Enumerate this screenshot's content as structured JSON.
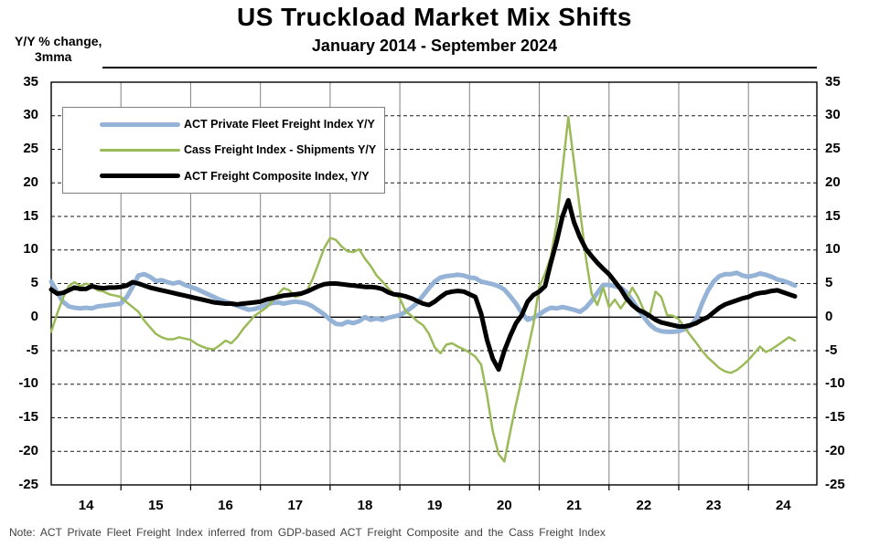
{
  "page": {
    "title": "US Truckload Market Mix Shifts",
    "subtitle": "January 2014 - September 2024",
    "y_axis_unit_line1": "Y/Y % change,",
    "y_axis_unit_line2": "3mma",
    "note": "Note: ACT Private Fleet Freight Index inferred from GDP-based ACT Freight Composite and the Cass Freight Index"
  },
  "chart_data": {
    "type": "line",
    "title": "US Truckload Market Mix Shifts",
    "subtitle": "January 2014 - September 2024",
    "ylabel": "Y/Y % change, 3mma",
    "ylim": [
      -25,
      35
    ],
    "y_tick_step": 5,
    "y_ticks": [
      35,
      30,
      25,
      20,
      15,
      10,
      5,
      0,
      -5,
      -10,
      -15,
      -20,
      -25
    ],
    "x_tick_labels": [
      "14",
      "15",
      "16",
      "17",
      "18",
      "19",
      "20",
      "21",
      "22",
      "23",
      "24"
    ],
    "x_start": "2014-01",
    "x_end": "2024-09",
    "frequency": "monthly",
    "grid": {
      "vertical": "solid gray at January of each year",
      "horizontal": "dashed every 5, solid line at 0"
    },
    "legend_position": "top-left inside plot",
    "colors": {
      "background": "#FFFFFF",
      "vertical_grid": "#808080",
      "horizontal_grid": "#1A1A1A",
      "zero_line": "#000000",
      "border": "#000000"
    },
    "months": [
      "2014-01",
      "2014-02",
      "2014-03",
      "2014-04",
      "2014-05",
      "2014-06",
      "2014-07",
      "2014-08",
      "2014-09",
      "2014-10",
      "2014-11",
      "2014-12",
      "2015-01",
      "2015-02",
      "2015-03",
      "2015-04",
      "2015-05",
      "2015-06",
      "2015-07",
      "2015-08",
      "2015-09",
      "2015-10",
      "2015-11",
      "2015-12",
      "2016-01",
      "2016-02",
      "2016-03",
      "2016-04",
      "2016-05",
      "2016-06",
      "2016-07",
      "2016-08",
      "2016-09",
      "2016-10",
      "2016-11",
      "2016-12",
      "2017-01",
      "2017-02",
      "2017-03",
      "2017-04",
      "2017-05",
      "2017-06",
      "2017-07",
      "2017-08",
      "2017-09",
      "2017-10",
      "2017-11",
      "2017-12",
      "2018-01",
      "2018-02",
      "2018-03",
      "2018-04",
      "2018-05",
      "2018-06",
      "2018-07",
      "2018-08",
      "2018-09",
      "2018-10",
      "2018-11",
      "2018-12",
      "2019-01",
      "2019-02",
      "2019-03",
      "2019-04",
      "2019-05",
      "2019-06",
      "2019-07",
      "2019-08",
      "2019-09",
      "2019-10",
      "2019-11",
      "2019-12",
      "2020-01",
      "2020-02",
      "2020-03",
      "2020-04",
      "2020-05",
      "2020-06",
      "2020-07",
      "2020-08",
      "2020-09",
      "2020-10",
      "2020-11",
      "2020-12",
      "2021-01",
      "2021-02",
      "2021-03",
      "2021-04",
      "2021-05",
      "2021-06",
      "2021-07",
      "2021-08",
      "2021-09",
      "2021-10",
      "2021-11",
      "2021-12",
      "2022-01",
      "2022-02",
      "2022-03",
      "2022-04",
      "2022-05",
      "2022-06",
      "2022-07",
      "2022-08",
      "2022-09",
      "2022-10",
      "2022-11",
      "2022-12",
      "2023-01",
      "2023-02",
      "2023-03",
      "2023-04",
      "2023-05",
      "2023-06",
      "2023-07",
      "2023-08",
      "2023-09",
      "2023-10",
      "2023-11",
      "2023-12",
      "2024-01",
      "2024-02",
      "2024-03",
      "2024-04",
      "2024-05",
      "2024-06",
      "2024-07",
      "2024-08",
      "2024-09"
    ],
    "series": [
      {
        "name": "ACT Private Fleet Freight Index Y/Y",
        "color": "#95B3D7",
        "line_width": 5,
        "values": [
          5.3,
          3.7,
          2.3,
          1.6,
          1.4,
          1.3,
          1.4,
          1.3,
          1.6,
          1.7,
          1.8,
          1.9,
          2.0,
          3.0,
          4.5,
          6.2,
          6.4,
          6.0,
          5.4,
          5.5,
          5.2,
          5.0,
          5.2,
          4.8,
          4.5,
          4.2,
          3.8,
          3.4,
          3.0,
          2.6,
          2.3,
          2.0,
          1.7,
          1.4,
          1.1,
          1.2,
          1.5,
          1.8,
          2.1,
          2.2,
          2.0,
          2.2,
          2.3,
          2.2,
          2.0,
          1.6,
          1.0,
          0.4,
          -0.4,
          -1.0,
          -1.1,
          -0.7,
          -0.9,
          -0.6,
          0.0,
          -0.4,
          -0.2,
          -0.4,
          -0.1,
          0.1,
          0.3,
          0.8,
          1.4,
          2.1,
          3.2,
          4.3,
          5.3,
          5.9,
          6.1,
          6.2,
          6.3,
          6.2,
          5.9,
          5.8,
          5.3,
          5.1,
          4.9,
          4.6,
          4.1,
          3.1,
          2.0,
          0.6,
          -0.4,
          -0.1,
          0.4,
          1.0,
          1.4,
          1.3,
          1.5,
          1.3,
          1.1,
          0.8,
          1.4,
          2.4,
          3.6,
          4.8,
          4.8,
          4.6,
          4.4,
          3.7,
          2.5,
          1.2,
          0.0,
          -1.1,
          -1.8,
          -2.1,
          -2.2,
          -2.2,
          -2.1,
          -1.8,
          -1.3,
          -0.3,
          2.0,
          3.9,
          5.3,
          6.1,
          6.4,
          6.4,
          6.6,
          6.2,
          6.0,
          6.2,
          6.5,
          6.3,
          6.0,
          5.6,
          5.4,
          5.1,
          4.7
        ]
      },
      {
        "name": "Cass Freight Index - Shipments Y/Y",
        "color": "#9BBB59",
        "line_width": 2.5,
        "values": [
          -2.2,
          0.5,
          2.8,
          4.6,
          5.2,
          4.6,
          5.0,
          4.6,
          4.0,
          3.8,
          3.4,
          3.2,
          3.0,
          2.2,
          1.5,
          0.8,
          -0.5,
          -1.5,
          -2.5,
          -3.0,
          -3.3,
          -3.3,
          -3.0,
          -3.2,
          -3.4,
          -4.0,
          -4.4,
          -4.7,
          -4.8,
          -4.2,
          -3.5,
          -3.9,
          -3.0,
          -1.8,
          -0.8,
          0.2,
          0.8,
          1.4,
          2.3,
          3.4,
          4.3,
          4.0,
          3.0,
          3.3,
          3.9,
          5.7,
          8.0,
          10.3,
          11.8,
          11.5,
          10.5,
          9.8,
          9.7,
          10.1,
          8.7,
          7.6,
          6.2,
          5.3,
          4.3,
          3.5,
          2.8,
          0.9,
          0.2,
          -0.6,
          -1.2,
          -2.5,
          -4.5,
          -5.4,
          -4.1,
          -3.9,
          -4.4,
          -4.8,
          -5.3,
          -5.9,
          -7.1,
          -11.6,
          -17.0,
          -20.4,
          -21.5,
          -17.1,
          -13.0,
          -9.1,
          -5.0,
          -1.0,
          4.5,
          6.5,
          9.0,
          14.0,
          22.0,
          29.8,
          23.0,
          16.0,
          9.0,
          3.5,
          1.8,
          4.4,
          1.5,
          2.6,
          1.3,
          2.5,
          4.4,
          3.0,
          1.0,
          0.3,
          3.8,
          3.0,
          0.3,
          0.2,
          -0.3,
          -1.5,
          -2.7,
          -3.8,
          -5.0,
          -6.0,
          -6.8,
          -7.6,
          -8.1,
          -8.3,
          -7.9,
          -7.2,
          -6.4,
          -5.4,
          -4.4,
          -5.2,
          -4.8,
          -4.2,
          -3.6,
          -3.0,
          -3.5
        ]
      },
      {
        "name": "ACT Freight Composite Index, Y/Y",
        "color": "#000000",
        "line_width": 5,
        "values": [
          4.1,
          3.5,
          3.6,
          4.0,
          4.4,
          4.2,
          4.2,
          4.6,
          4.4,
          4.3,
          4.4,
          4.4,
          4.5,
          4.7,
          5.2,
          5.0,
          4.7,
          4.4,
          4.2,
          4.0,
          3.8,
          3.6,
          3.4,
          3.2,
          3.0,
          2.8,
          2.6,
          2.4,
          2.2,
          2.1,
          2.0,
          2.0,
          1.9,
          2.0,
          2.1,
          2.2,
          2.3,
          2.6,
          2.8,
          3.0,
          3.2,
          3.3,
          3.4,
          3.5,
          3.8,
          4.2,
          4.6,
          4.9,
          5.0,
          5.0,
          4.9,
          4.8,
          4.7,
          4.6,
          4.5,
          4.5,
          4.4,
          4.2,
          3.7,
          3.4,
          3.3,
          3.1,
          2.8,
          2.4,
          2.0,
          1.8,
          2.3,
          3.0,
          3.6,
          3.8,
          3.9,
          3.8,
          3.4,
          3.0,
          0.5,
          -3.4,
          -6.2,
          -7.8,
          -5.0,
          -2.8,
          -0.9,
          0.3,
          2.3,
          3.3,
          3.8,
          4.6,
          8.1,
          11.3,
          15.0,
          17.4,
          14.1,
          11.9,
          10.2,
          9.1,
          8.1,
          7.2,
          6.4,
          5.3,
          4.2,
          2.8,
          1.8,
          1.1,
          0.7,
          0.2,
          -0.4,
          -0.8,
          -1.0,
          -1.2,
          -1.4,
          -1.4,
          -1.2,
          -0.9,
          -0.4,
          0.0,
          0.7,
          1.4,
          1.9,
          2.2,
          2.5,
          2.8,
          3.0,
          3.4,
          3.6,
          3.7,
          3.9,
          4.0,
          3.7,
          3.4,
          3.1
        ]
      }
    ]
  }
}
